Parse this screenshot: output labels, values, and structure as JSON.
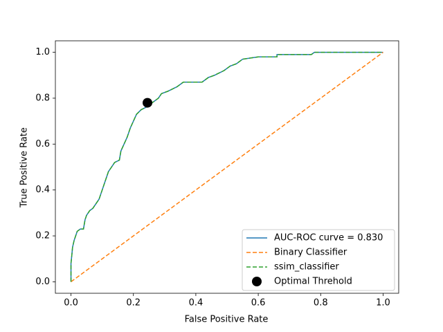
{
  "chart_data": {
    "type": "line",
    "xlabel": "False Positive Rate",
    "ylabel": "True Positive Rate",
    "xlim": [
      -0.05,
      1.05
    ],
    "ylim": [
      -0.05,
      1.05
    ],
    "xticks": [
      {
        "value": 0,
        "label": "0.0"
      },
      0.2,
      0.4,
      0.6,
      0.8,
      {
        "value": 1,
        "label": "1.0"
      }
    ],
    "yticks": [
      {
        "value": 0,
        "label": "0.0"
      },
      0.2,
      0.4,
      0.6,
      0.8,
      {
        "value": 1,
        "label": "1.0"
      }
    ],
    "legend": "lower right",
    "grid": false,
    "series": [
      {
        "name": "AUC-ROC curve = 0.830",
        "color": "#1f77b4",
        "linestyle": "solid",
        "x": [
          0,
          0,
          0.003,
          0.005,
          0.01,
          0.015,
          0.02,
          0.03,
          0.04,
          0.045,
          0.05,
          0.06,
          0.07,
          0.08,
          0.09,
          0.1,
          0.11,
          0.12,
          0.13,
          0.14,
          0.155,
          0.16,
          0.17,
          0.18,
          0.19,
          0.2,
          0.21,
          0.225,
          0.24,
          0.26,
          0.28,
          0.29,
          0.31,
          0.34,
          0.36,
          0.42,
          0.44,
          0.46,
          0.49,
          0.51,
          0.53,
          0.55,
          0.6,
          0.66,
          0.66,
          0.77,
          0.78,
          1.0
        ],
        "values": [
          0,
          0.08,
          0.12,
          0.15,
          0.18,
          0.2,
          0.22,
          0.23,
          0.23,
          0.27,
          0.29,
          0.31,
          0.32,
          0.34,
          0.36,
          0.4,
          0.44,
          0.48,
          0.5,
          0.52,
          0.53,
          0.57,
          0.6,
          0.63,
          0.67,
          0.7,
          0.73,
          0.75,
          0.76,
          0.78,
          0.8,
          0.82,
          0.83,
          0.85,
          0.87,
          0.87,
          0.89,
          0.9,
          0.92,
          0.94,
          0.95,
          0.97,
          0.98,
          0.98,
          0.99,
          0.99,
          1.0,
          1.0
        ]
      },
      {
        "name": "Binary Classifier",
        "color": "#ff7f0e",
        "linestyle": "dashed",
        "x": [
          0,
          1
        ],
        "values": [
          0,
          1
        ]
      },
      {
        "name": "ssim_classifier",
        "color": "#2ca02c",
        "linestyle": "dashed",
        "x": [
          0,
          0,
          0.003,
          0.005,
          0.01,
          0.015,
          0.02,
          0.03,
          0.04,
          0.045,
          0.05,
          0.06,
          0.07,
          0.08,
          0.09,
          0.1,
          0.11,
          0.12,
          0.13,
          0.14,
          0.155,
          0.16,
          0.17,
          0.18,
          0.19,
          0.2,
          0.21,
          0.225,
          0.24,
          0.26,
          0.28,
          0.29,
          0.31,
          0.34,
          0.36,
          0.42,
          0.44,
          0.46,
          0.49,
          0.51,
          0.53,
          0.55,
          0.6,
          0.66,
          0.66,
          0.77,
          0.78,
          1.0
        ],
        "values": [
          0,
          0.08,
          0.12,
          0.15,
          0.18,
          0.2,
          0.22,
          0.23,
          0.23,
          0.27,
          0.29,
          0.31,
          0.32,
          0.34,
          0.36,
          0.4,
          0.44,
          0.48,
          0.5,
          0.52,
          0.53,
          0.57,
          0.6,
          0.63,
          0.67,
          0.7,
          0.73,
          0.75,
          0.76,
          0.78,
          0.8,
          0.82,
          0.83,
          0.85,
          0.87,
          0.87,
          0.89,
          0.9,
          0.92,
          0.94,
          0.95,
          0.97,
          0.98,
          0.98,
          0.99,
          0.99,
          1.0,
          1.0
        ]
      },
      {
        "name": "Optimal Threhold",
        "color": "#000000",
        "linestyle": "none",
        "marker": "o",
        "x": [
          0.245
        ],
        "values": [
          0.78
        ]
      }
    ]
  }
}
